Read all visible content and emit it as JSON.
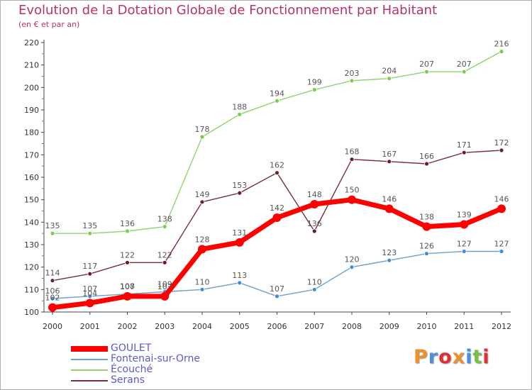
{
  "title": "Evolution de la Dotation Globale de Fonctionnement par Habitant",
  "subtitle": "(en € et par an)",
  "logo_text": "Proxiti",
  "logo_colors": [
    "#f0902a",
    "#4a90e2",
    "#e23030",
    "#f0902a",
    "#4a90e2",
    "#7ac142",
    "#e23030"
  ],
  "chart_data": {
    "type": "line",
    "x": [
      2000,
      2001,
      2002,
      2003,
      2004,
      2005,
      2006,
      2007,
      2008,
      2009,
      2010,
      2011,
      2012
    ],
    "ylim": [
      100,
      220
    ],
    "yticks": [
      100,
      110,
      120,
      130,
      140,
      150,
      160,
      170,
      180,
      190,
      200,
      210,
      220
    ],
    "grid": false,
    "legend_position": "bottom-left",
    "series": [
      {
        "name": "Fontenai-sur-Orne",
        "color": "#6a9fd0",
        "marker": "#3a8fdc",
        "values": [
          106,
          107,
          108,
          109,
          110,
          113,
          107,
          110,
          120,
          123,
          126,
          127,
          127
        ]
      },
      {
        "name": "Écouché",
        "color": "#8fd36a",
        "marker": "#7ccb4e",
        "values": [
          135,
          135,
          136,
          138,
          178,
          188,
          194,
          199,
          203,
          204,
          207,
          207,
          216
        ]
      },
      {
        "name": "Serans",
        "color": "#7a2e36",
        "marker": "#6a1e28",
        "values": [
          114,
          117,
          122,
          122,
          149,
          153,
          162,
          136,
          168,
          167,
          166,
          171,
          172
        ]
      },
      {
        "name": "GOULET",
        "color": "#ff0000",
        "marker": "#ff0000",
        "values": [
          102,
          104,
          107,
          107,
          128,
          131,
          142,
          148,
          150,
          146,
          138,
          139,
          146
        ]
      }
    ]
  }
}
